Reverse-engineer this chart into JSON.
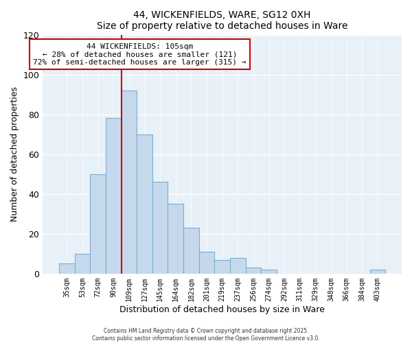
{
  "title": "44, WICKENFIELDS, WARE, SG12 0XH",
  "subtitle": "Size of property relative to detached houses in Ware",
  "xlabel": "Distribution of detached houses by size in Ware",
  "ylabel": "Number of detached properties",
  "bar_color": "#c6d9ec",
  "bar_edge_color": "#7aadce",
  "background_color": "#ffffff",
  "plot_bg_color": "#e8f0f8",
  "grid_color": "#ffffff",
  "categories": [
    "35sqm",
    "53sqm",
    "72sqm",
    "90sqm",
    "109sqm",
    "127sqm",
    "145sqm",
    "164sqm",
    "182sqm",
    "201sqm",
    "219sqm",
    "237sqm",
    "256sqm",
    "274sqm",
    "292sqm",
    "311sqm",
    "329sqm",
    "348sqm",
    "366sqm",
    "384sqm",
    "403sqm"
  ],
  "values": [
    5,
    10,
    50,
    78,
    92,
    70,
    46,
    35,
    23,
    11,
    7,
    8,
    3,
    2,
    0,
    0,
    0,
    0,
    0,
    0,
    2
  ],
  "ylim": [
    0,
    120
  ],
  "yticks": [
    0,
    20,
    40,
    60,
    80,
    100,
    120
  ],
  "vline_x_index": 4,
  "vline_color": "#cc0000",
  "annotation_title": "44 WICKENFIELDS: 105sqm",
  "annotation_line1": "← 28% of detached houses are smaller (121)",
  "annotation_line2": "72% of semi-detached houses are larger (315) →",
  "annotation_box_color": "#ffffff",
  "annotation_box_edge": "#cc0000",
  "footer1": "Contains HM Land Registry data © Crown copyright and database right 2025.",
  "footer2": "Contains public sector information licensed under the Open Government Licence v3.0."
}
